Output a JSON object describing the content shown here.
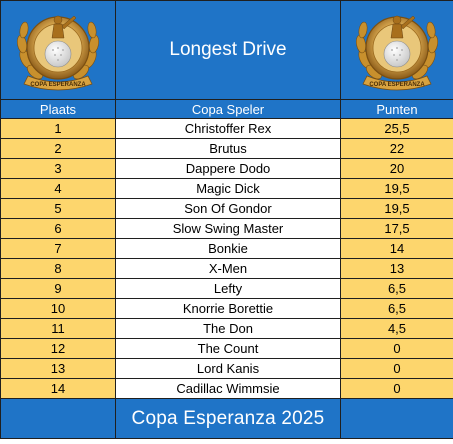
{
  "header": {
    "title": "Longest Drive",
    "logo_text": "COPA ESPERANZA"
  },
  "columns": {
    "rank": "Plaats",
    "player": "Copa Speler",
    "points": "Punten"
  },
  "rows": [
    {
      "rank": "1",
      "player": "Christoffer Rex",
      "points": "25,5"
    },
    {
      "rank": "2",
      "player": "Brutus",
      "points": "22"
    },
    {
      "rank": "3",
      "player": "Dappere Dodo",
      "points": "20"
    },
    {
      "rank": "4",
      "player": "Magic Dick",
      "points": "19,5"
    },
    {
      "rank": "5",
      "player": "Son Of Gondor",
      "points": "19,5"
    },
    {
      "rank": "6",
      "player": "Slow Swing Master",
      "points": "17,5"
    },
    {
      "rank": "7",
      "player": "Bonkie",
      "points": "14"
    },
    {
      "rank": "8",
      "player": "X-Men",
      "points": "13"
    },
    {
      "rank": "9",
      "player": "Lefty",
      "points": "6,5"
    },
    {
      "rank": "10",
      "player": "Knorrie Borettie",
      "points": "6,5"
    },
    {
      "rank": "11",
      "player": "The Don",
      "points": "4,5"
    },
    {
      "rank": "12",
      "player": "The Count",
      "points": "0"
    },
    {
      "rank": "13",
      "player": "Lord Kanis",
      "points": "0"
    },
    {
      "rank": "14",
      "player": "Cadillac Wimmsie",
      "points": "0"
    }
  ],
  "footer": {
    "text": "Copa Esperanza 2025"
  },
  "colors": {
    "header_blue": "#1f74c7",
    "row_yellow": "#fdd66d",
    "gold": "#d9a441"
  }
}
